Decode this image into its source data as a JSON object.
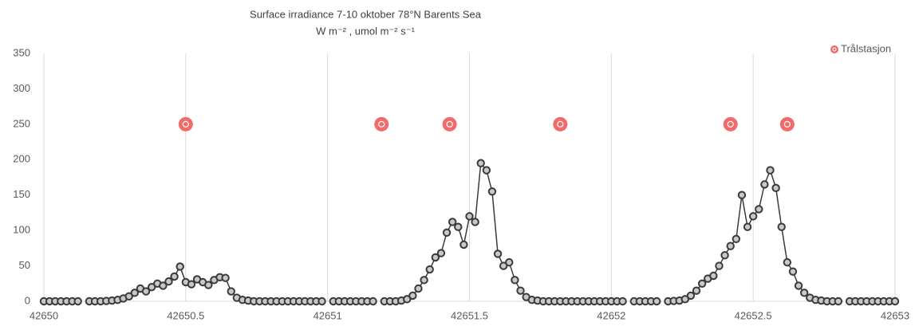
{
  "chart_data": {
    "type": "line",
    "title": "Surface irradiance 7-10 oktober 78°N Barents Sea",
    "subtitle": "W m⁻² , umol m⁻² s⁻¹",
    "xlim": [
      42650,
      42653
    ],
    "xticks": [
      42650,
      42650.5,
      42651,
      42651.5,
      42652,
      42652.5,
      42653
    ],
    "ylim": [
      0,
      350
    ],
    "yticks": [
      0,
      50,
      100,
      150,
      200,
      250,
      300,
      350
    ],
    "grid_x": true,
    "legend": "top-right",
    "series": [
      {
        "color": "#3a3a3a",
        "style": "line-markers",
        "x": [
          42650,
          42650.02,
          42650.04,
          42650.06,
          42650.08,
          42650.1,
          42650.12,
          42650.14,
          42650.16,
          42650.18,
          42650.2,
          42650.22,
          42650.24,
          42650.26,
          42650.28,
          42650.3,
          42650.32,
          42650.34,
          42650.36,
          42650.38,
          42650.4,
          42650.42,
          42650.44,
          42650.46,
          42650.48,
          42650.5,
          42650.52,
          42650.54,
          42650.56,
          42650.58,
          42650.6,
          42650.62,
          42650.64,
          42650.66,
          42650.68,
          42650.7,
          42650.72,
          42650.74,
          42650.76,
          42650.78,
          42650.8,
          42650.82,
          42650.84,
          42650.86,
          42650.88,
          42650.9,
          42650.92,
          42650.94,
          42650.96,
          42650.98,
          42651,
          42651.02,
          42651.04,
          42651.06,
          42651.08,
          42651.1,
          42651.12,
          42651.14,
          42651.16,
          42651.18,
          42651.2,
          42651.22,
          42651.24,
          42651.26,
          42651.28,
          42651.3,
          42651.32,
          42651.34,
          42651.36,
          42651.38,
          42651.4,
          42651.42,
          42651.44,
          42651.46,
          42651.48,
          42651.5,
          42651.52,
          42651.54,
          42651.56,
          42651.58,
          42651.6,
          42651.62,
          42651.64,
          42651.66,
          42651.68,
          42651.7,
          42651.72,
          42651.74,
          42651.76,
          42651.78,
          42651.8,
          42651.82,
          42651.84,
          42651.86,
          42651.88,
          42651.9,
          42651.92,
          42651.94,
          42651.96,
          42651.98,
          42652,
          42652.02,
          42652.04,
          42652.06,
          42652.08,
          42652.1,
          42652.12,
          42652.14,
          42652.16,
          42652.18,
          42652.2,
          42652.22,
          42652.24,
          42652.26,
          42652.28,
          42652.3,
          42652.32,
          42652.34,
          42652.36,
          42652.38,
          42652.4,
          42652.42,
          42652.44,
          42652.46,
          42652.48,
          42652.5,
          42652.52,
          42652.54,
          42652.56,
          42652.58,
          42652.6,
          42652.62,
          42652.64,
          42652.66,
          42652.68,
          42652.7,
          42652.72,
          42652.74,
          42652.76,
          42652.78,
          42652.8,
          42652.82,
          42652.84,
          42652.86,
          42652.88,
          42652.9,
          42652.92,
          42652.94,
          42652.96,
          42652.98,
          42653
        ],
        "values": [
          0,
          0,
          0,
          0,
          0,
          0,
          0,
          null,
          0,
          0,
          0,
          0.5,
          1,
          2,
          4,
          7,
          12,
          18,
          14,
          20,
          25,
          22,
          28,
          35,
          49,
          27,
          24,
          31,
          27,
          23,
          30,
          34,
          33,
          14,
          5,
          2,
          1,
          0,
          0,
          0,
          0,
          0,
          0,
          0,
          0,
          0,
          0,
          0,
          0,
          0,
          null,
          0,
          0,
          0,
          0,
          0,
          0,
          0,
          0,
          null,
          0,
          0,
          0,
          1,
          3,
          8,
          18,
          30,
          45,
          62,
          68,
          97,
          112,
          105,
          80,
          120,
          112,
          195,
          185,
          155,
          67,
          50,
          55,
          30,
          15,
          6,
          2,
          1,
          0,
          0,
          0,
          0,
          0,
          0,
          0,
          0,
          0,
          0,
          0,
          0,
          0,
          0,
          0,
          null,
          0,
          0,
          0,
          0,
          0,
          null,
          0,
          0.5,
          1,
          3,
          8,
          15,
          25,
          32,
          36,
          50,
          65,
          78,
          88,
          150,
          105,
          120,
          130,
          165,
          185,
          160,
          105,
          55,
          42,
          22,
          12,
          5,
          2,
          1,
          0,
          0,
          0,
          null,
          0,
          0,
          0,
          0,
          0,
          0,
          0,
          0,
          0
        ]
      },
      {
        "name": "Trålstasjon",
        "color": "#f26b6b",
        "style": "markers",
        "x": [
          42650.5,
          42651.19,
          42651.43,
          42651.82,
          42652.42,
          42652.62
        ],
        "values": [
          250,
          250,
          250,
          250,
          250,
          250
        ]
      }
    ]
  }
}
